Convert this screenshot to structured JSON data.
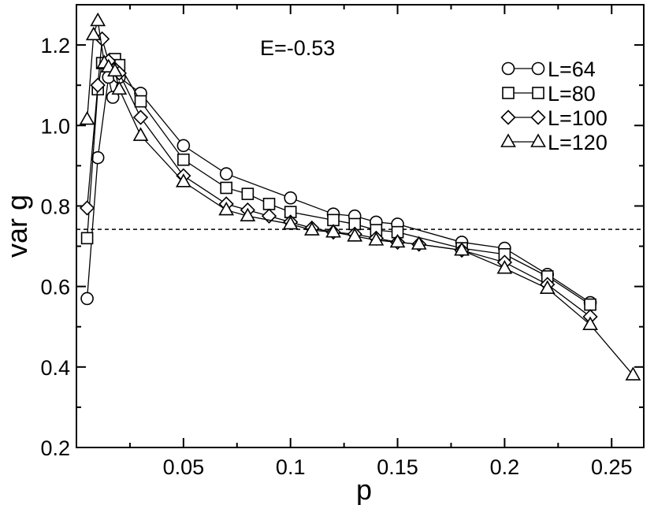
{
  "chart_data": {
    "type": "line",
    "title": "",
    "xlabel": "p",
    "ylabel": "var g",
    "xlim": [
      0.0,
      0.265
    ],
    "ylim": [
      0.2,
      1.3
    ],
    "xticks": [
      0.05,
      0.1,
      0.15,
      0.2,
      0.25
    ],
    "xtick_labels": [
      "0.05",
      "0.1",
      "0.15",
      "0.2",
      "0.25"
    ],
    "yticks": [
      0.2,
      0.4,
      0.6,
      0.8,
      1.0,
      1.2
    ],
    "ytick_labels": [
      "0.2",
      "0.4",
      "0.6",
      "0.8",
      "1.0",
      "1.2"
    ],
    "annotation": "E=-0.53",
    "reference_line": {
      "y": 0.742,
      "style": "dashed"
    },
    "legend_position": "top-right",
    "grid": false,
    "series": [
      {
        "name": "L=64",
        "marker": "circle",
        "x": [
          0.005,
          0.01,
          0.015,
          0.017,
          0.02,
          0.03,
          0.05,
          0.07,
          0.1,
          0.12,
          0.13,
          0.14,
          0.15,
          0.18,
          0.2,
          0.22,
          0.24
        ],
        "y": [
          0.57,
          0.92,
          1.12,
          1.07,
          1.12,
          1.08,
          0.95,
          0.88,
          0.82,
          0.78,
          0.775,
          0.76,
          0.755,
          0.71,
          0.695,
          0.63,
          0.56
        ]
      },
      {
        "name": "L=80",
        "marker": "square",
        "x": [
          0.005,
          0.01,
          0.012,
          0.015,
          0.018,
          0.02,
          0.03,
          0.05,
          0.07,
          0.08,
          0.09,
          0.1,
          0.12,
          0.13,
          0.14,
          0.15,
          0.18,
          0.2,
          0.22,
          0.24
        ],
        "y": [
          0.72,
          1.09,
          1.155,
          1.15,
          1.165,
          1.15,
          1.06,
          0.915,
          0.845,
          0.83,
          0.805,
          0.785,
          0.765,
          0.755,
          0.74,
          0.735,
          0.695,
          0.68,
          0.625,
          0.555
        ]
      },
      {
        "name": "L=100",
        "marker": "diamond",
        "x": [
          0.005,
          0.01,
          0.012,
          0.015,
          0.018,
          0.02,
          0.03,
          0.05,
          0.07,
          0.08,
          0.09,
          0.1,
          0.11,
          0.12,
          0.13,
          0.14,
          0.15,
          0.16,
          0.18,
          0.2,
          0.22,
          0.24
        ],
        "y": [
          0.795,
          1.1,
          1.215,
          1.16,
          1.14,
          1.13,
          1.02,
          0.875,
          0.805,
          0.79,
          0.775,
          0.76,
          0.745,
          0.735,
          0.73,
          0.72,
          0.71,
          0.705,
          0.69,
          0.66,
          0.605,
          0.525
        ]
      },
      {
        "name": "L=120",
        "marker": "triangle",
        "x": [
          0.005,
          0.008,
          0.01,
          0.013,
          0.015,
          0.018,
          0.02,
          0.03,
          0.05,
          0.07,
          0.08,
          0.1,
          0.11,
          0.12,
          0.13,
          0.14,
          0.15,
          0.16,
          0.18,
          0.2,
          0.22,
          0.24,
          0.26
        ],
        "y": [
          1.015,
          1.225,
          1.26,
          1.155,
          1.145,
          1.135,
          1.09,
          0.975,
          0.86,
          0.79,
          0.775,
          0.755,
          0.74,
          0.735,
          0.725,
          0.715,
          0.71,
          0.705,
          0.69,
          0.645,
          0.595,
          0.505,
          0.38
        ]
      }
    ]
  }
}
